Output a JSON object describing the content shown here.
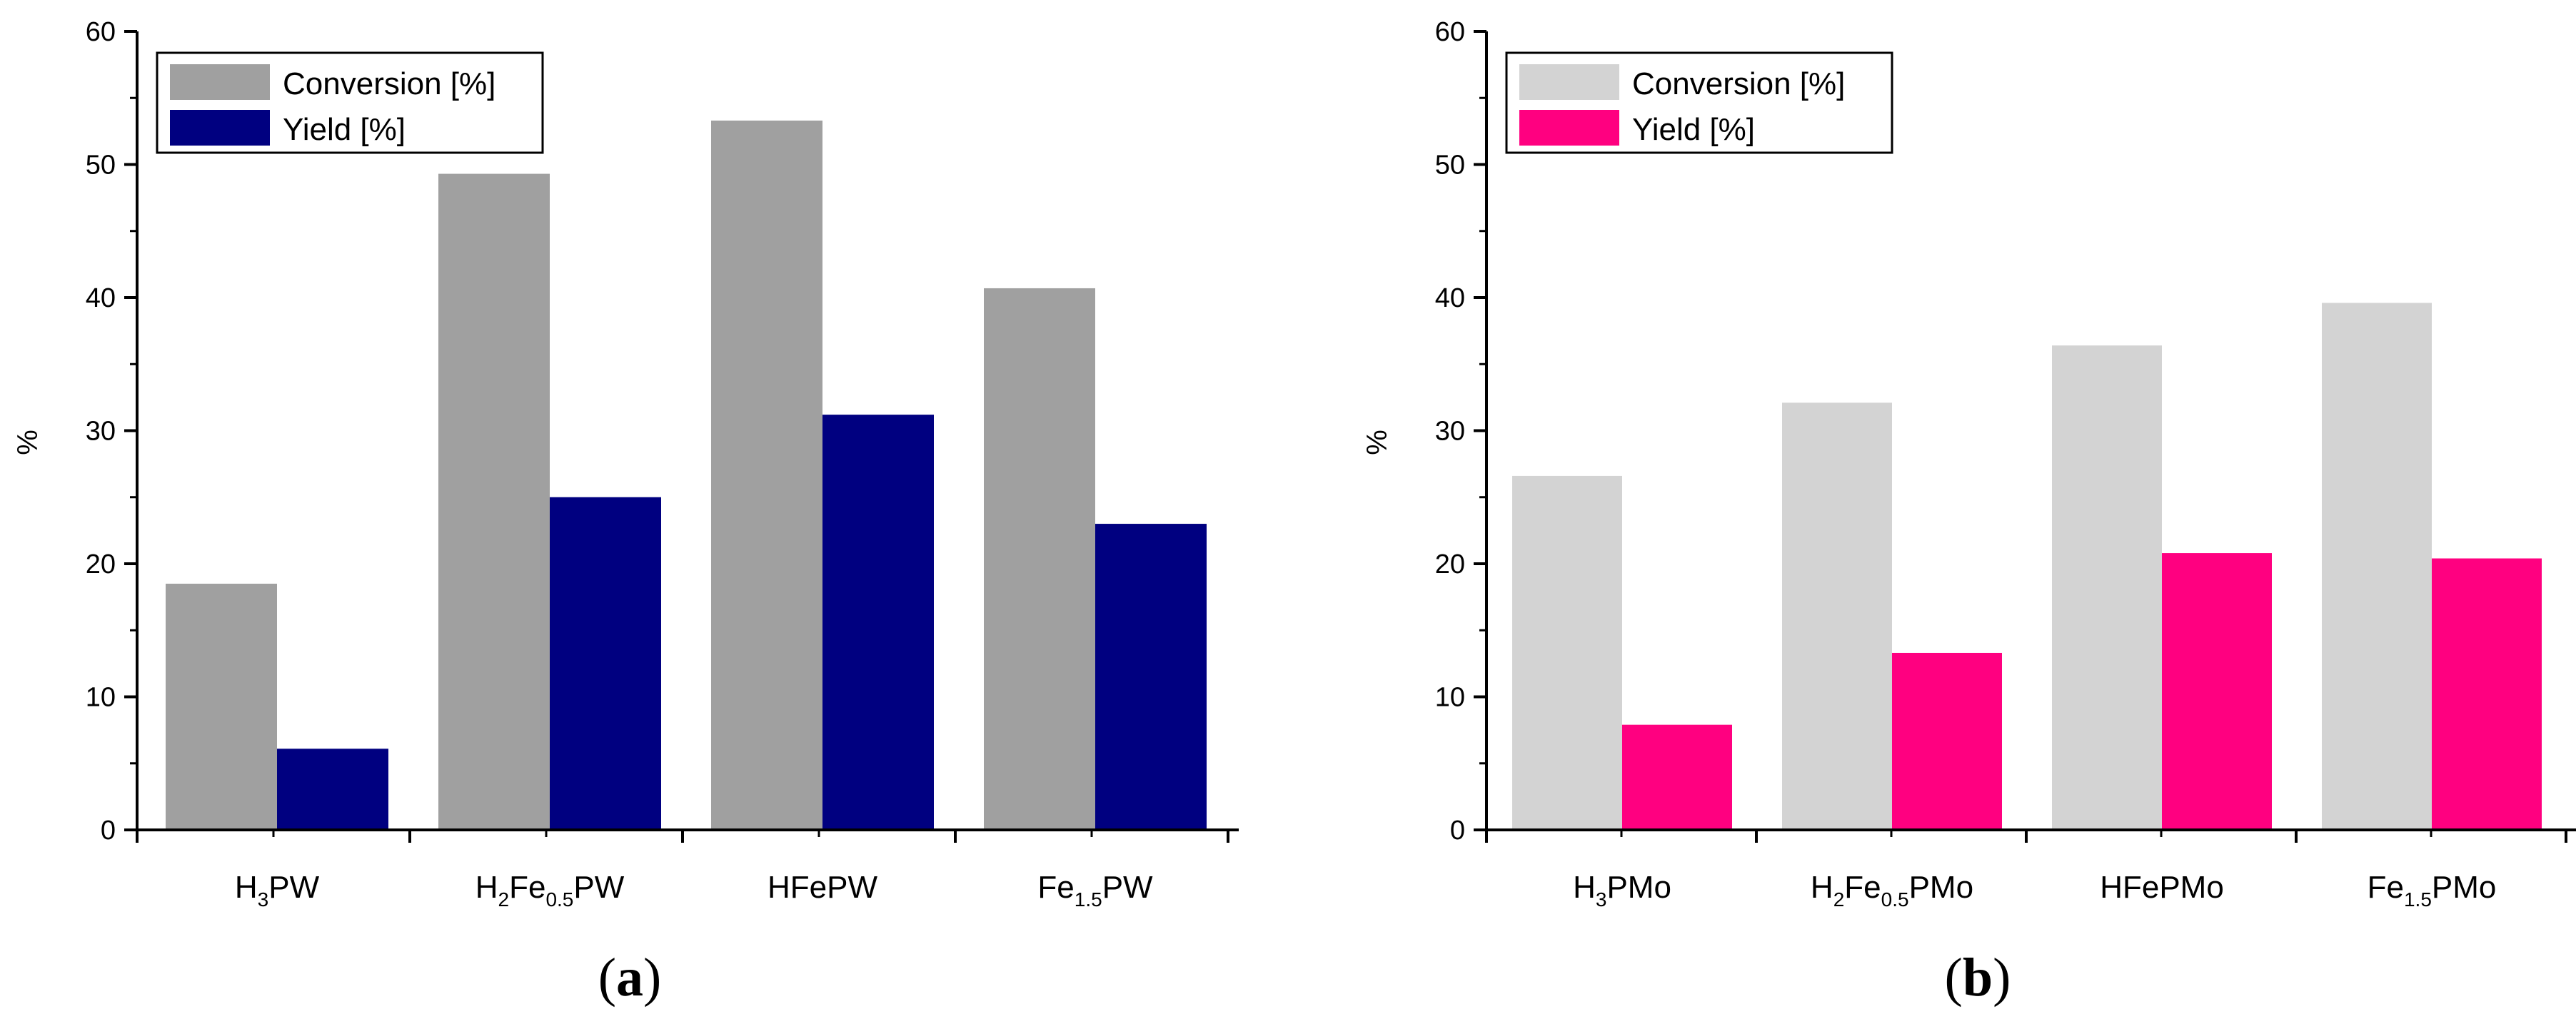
{
  "chart_data": [
    {
      "type": "bar",
      "panel_label": {
        "open": "(",
        "letter": "a",
        "close": ")"
      },
      "ylabel": "%",
      "ylim": [
        0,
        60
      ],
      "yticks": [
        "0",
        "10",
        "20",
        "30",
        "40",
        "50",
        "60"
      ],
      "categories": [
        {
          "parts": [
            [
              "H",
              ""
            ],
            [
              "3",
              "sub"
            ],
            [
              "PW",
              ""
            ]
          ]
        },
        {
          "parts": [
            [
              "H",
              ""
            ],
            [
              "2",
              "sub"
            ],
            [
              "Fe",
              ""
            ],
            [
              "0.5",
              "sub"
            ],
            [
              "PW",
              ""
            ]
          ]
        },
        {
          "parts": [
            [
              "HFePW",
              ""
            ]
          ]
        },
        {
          "parts": [
            [
              "Fe",
              ""
            ],
            [
              "1.5",
              "sub"
            ],
            [
              "PW",
              ""
            ]
          ]
        }
      ],
      "series": [
        {
          "name": "Conversion [%]",
          "color": "#a0a0a0",
          "values": [
            18.5,
            49.3,
            53.3,
            40.7
          ]
        },
        {
          "name": "Yield [%]",
          "color": "#000080",
          "values": [
            6.1,
            25.0,
            31.2,
            23.0
          ]
        }
      ]
    },
    {
      "type": "bar",
      "panel_label": {
        "open": "(",
        "letter": "b",
        "close": ")"
      },
      "ylabel": "%",
      "ylim": [
        0,
        60
      ],
      "yticks": [
        "0",
        "10",
        "20",
        "30",
        "40",
        "50",
        "60"
      ],
      "categories": [
        {
          "parts": [
            [
              "H",
              ""
            ],
            [
              "3",
              "sub"
            ],
            [
              "PMo",
              ""
            ]
          ]
        },
        {
          "parts": [
            [
              "H",
              ""
            ],
            [
              "2",
              "sub"
            ],
            [
              "Fe",
              ""
            ],
            [
              "0.5",
              "sub"
            ],
            [
              "PMo",
              ""
            ]
          ]
        },
        {
          "parts": [
            [
              "HFePMo",
              ""
            ]
          ]
        },
        {
          "parts": [
            [
              "Fe",
              ""
            ],
            [
              "1.5",
              "sub"
            ],
            [
              "PMo",
              ""
            ]
          ]
        }
      ],
      "series": [
        {
          "name": "Conversion [%]",
          "color": "#d3d3d3",
          "values": [
            26.6,
            32.1,
            36.4,
            39.6
          ]
        },
        {
          "name": "Yield [%]",
          "color": "#ff0080",
          "values": [
            7.9,
            13.3,
            20.8,
            20.4
          ]
        }
      ]
    }
  ]
}
